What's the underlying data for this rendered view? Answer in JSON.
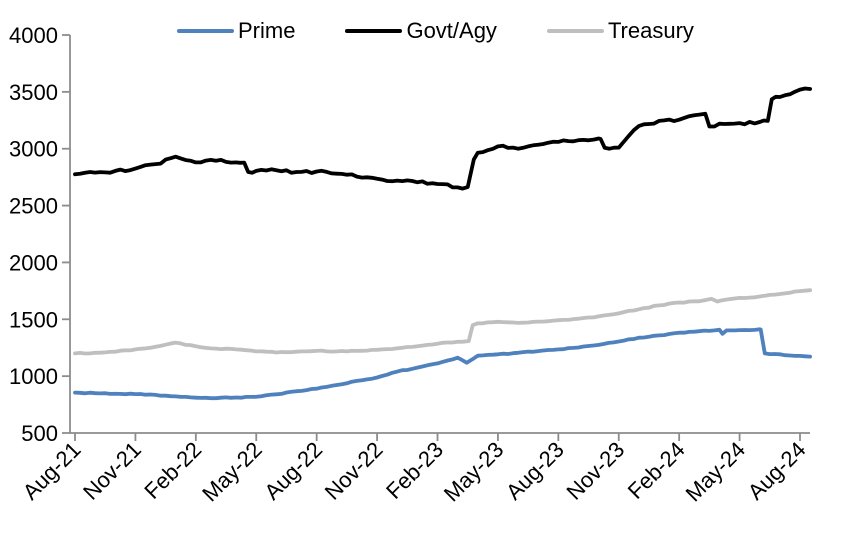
{
  "chart_data": {
    "type": "line",
    "title": "",
    "xlabel": "",
    "ylabel": "",
    "ylim": [
      500,
      4000
    ],
    "y_ticks": [
      500,
      1000,
      1500,
      2000,
      2500,
      3000,
      3500,
      4000
    ],
    "grid": false,
    "legend_position": "top",
    "axis_color": "#8c8c8c",
    "label_color": "#000000",
    "x_tick_labels": [
      "Aug-21",
      "Nov-21",
      "Feb-22",
      "May-22",
      "Aug-22",
      "Nov-22",
      "Feb-23",
      "May-23",
      "Aug-23",
      "Nov-23",
      "Feb-24",
      "May-24",
      "Aug-24"
    ],
    "label_every": 3,
    "categories": [
      "Aug-21",
      "Sep-21",
      "Oct-21",
      "Nov-21",
      "Dec-21",
      "Jan-22",
      "Feb-22",
      "Mar-22",
      "Apr-22",
      "May-22",
      "Jun-22",
      "Jul-22",
      "Aug-22",
      "Sep-22",
      "Oct-22",
      "Nov-22",
      "Dec-22",
      "Jan-23",
      "Feb-23",
      "Mar-23",
      "Apr-23",
      "May-23",
      "Jun-23",
      "Jul-23",
      "Aug-23",
      "Sep-23",
      "Oct-23",
      "Nov-23",
      "Dec-23",
      "Jan-24",
      "Feb-24",
      "Mar-24",
      "Apr-24",
      "May-24",
      "Jun-24",
      "Jul-24",
      "Aug-24"
    ],
    "series": [
      {
        "name": "Prime",
        "color": "#4F81BD",
        "jitter": 4,
        "values": [
          855,
          850,
          845,
          842,
          835,
          822,
          810,
          806,
          812,
          818,
          840,
          868,
          890,
          922,
          958,
          988,
          1040,
          1075,
          1112,
          1162,
          1180,
          1192,
          1205,
          1220,
          1235,
          1252,
          1275,
          1305,
          1338,
          1358,
          1382,
          1395,
          1408,
          1405,
          1412,
          1192,
          1178
        ],
        "extra_points": [
          [
            19.45,
            1118
          ],
          [
            32.15,
            1372
          ],
          [
            32.35,
            1402
          ],
          [
            34.05,
            1410
          ],
          [
            34.25,
            1200
          ],
          [
            36.5,
            1172
          ]
        ]
      },
      {
        "name": "Govt/Agy",
        "color": "#000000",
        "jitter": 13,
        "values": [
          2775,
          2790,
          2805,
          2825,
          2865,
          2930,
          2880,
          2895,
          2880,
          2805,
          2810,
          2795,
          2800,
          2780,
          2755,
          2735,
          2720,
          2705,
          2690,
          2660,
          2965,
          3020,
          3000,
          3035,
          3060,
          3075,
          3090,
          3010,
          3200,
          3245,
          3255,
          3300,
          3220,
          3225,
          3235,
          3455,
          3520
        ],
        "extra_points": [
          [
            8.4,
            2878
          ],
          [
            8.6,
            2795
          ],
          [
            19.5,
            2662
          ],
          [
            19.8,
            2905
          ],
          [
            26.1,
            3085
          ],
          [
            26.3,
            3008
          ],
          [
            31.3,
            3308
          ],
          [
            31.5,
            3195
          ],
          [
            34.4,
            3245
          ],
          [
            34.6,
            3435
          ],
          [
            36.5,
            3525
          ]
        ]
      },
      {
        "name": "Treasury",
        "color": "#BFBFBF",
        "jitter": 4,
        "values": [
          1200,
          1205,
          1215,
          1235,
          1258,
          1295,
          1262,
          1242,
          1235,
          1218,
          1208,
          1215,
          1222,
          1218,
          1222,
          1232,
          1245,
          1262,
          1285,
          1302,
          1465,
          1478,
          1468,
          1480,
          1492,
          1505,
          1525,
          1552,
          1588,
          1622,
          1648,
          1658,
          1662,
          1688,
          1700,
          1722,
          1748
        ],
        "extra_points": [
          [
            19.55,
            1308
          ],
          [
            19.75,
            1448
          ],
          [
            31.6,
            1680
          ],
          [
            31.9,
            1656
          ],
          [
            36.5,
            1756
          ]
        ]
      }
    ]
  }
}
